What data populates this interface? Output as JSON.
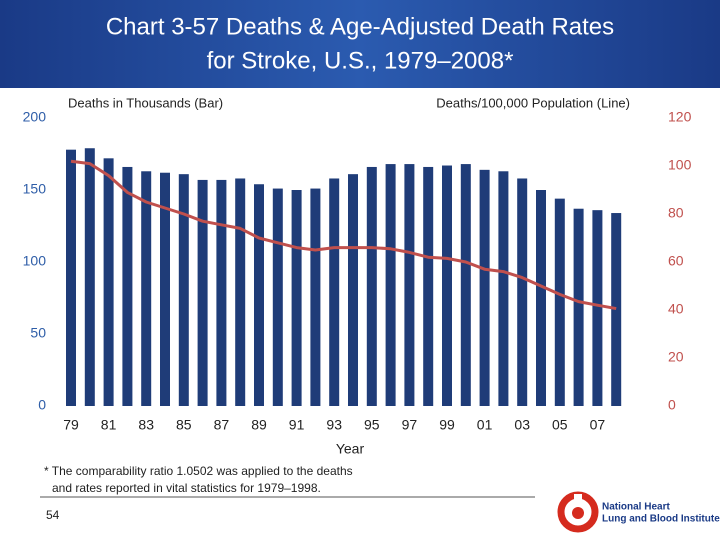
{
  "header": {
    "title_lines": [
      "Chart 3-57 Deaths & Age-Adjusted Death Rates",
      "for Stroke, U.S., 1979–2008*"
    ]
  },
  "chart_data": {
    "type": "bar",
    "xlabel": "Year",
    "categories": [
      "79",
      null,
      "81",
      null,
      "83",
      null,
      "85",
      null,
      "87",
      null,
      "89",
      null,
      "91",
      null,
      "93",
      null,
      "95",
      null,
      "97",
      null,
      "99",
      null,
      "01",
      null,
      "03",
      null,
      "05",
      null,
      "07",
      null
    ],
    "series": [
      {
        "name": "Deaths in Thousands (Bar)",
        "type": "bar",
        "color": "#1f3c78",
        "values": [
          178,
          179,
          172,
          166,
          163,
          162,
          161,
          157,
          157,
          158,
          154,
          151,
          150,
          151,
          158,
          161,
          166,
          168,
          168,
          166,
          167,
          168,
          164,
          163,
          158,
          150,
          144,
          137,
          136,
          134
        ]
      },
      {
        "name": "Deaths/100,000 Population (Line)",
        "type": "line",
        "axis": "y2",
        "color": "#c0504d",
        "values": [
          102,
          101,
          96,
          89,
          85,
          82.5,
          80,
          77,
          75.5,
          74,
          70,
          68,
          66,
          65,
          66,
          66,
          66,
          65.5,
          64,
          62,
          61.5,
          60,
          57,
          56,
          53.5,
          50,
          46.5,
          43.5,
          42,
          40.6
        ]
      }
    ],
    "ylim": [
      0,
      200
    ],
    "yticks": [
      0,
      50,
      100,
      150,
      200
    ],
    "ytick_color": "#2f5ea8",
    "y2lim": [
      0,
      120
    ],
    "y2ticks": [
      0,
      20,
      40,
      60,
      80,
      100,
      120
    ],
    "y2tick_color": "#c0504d"
  },
  "footnote": [
    "* The comparability ratio 1.0502 was applied to the deaths",
    "and rates reported in vital statistics for 1979–1998."
  ],
  "page_number": "54",
  "logo": {
    "lines": [
      "National Heart",
      "Lung and Blood Institute"
    ]
  }
}
